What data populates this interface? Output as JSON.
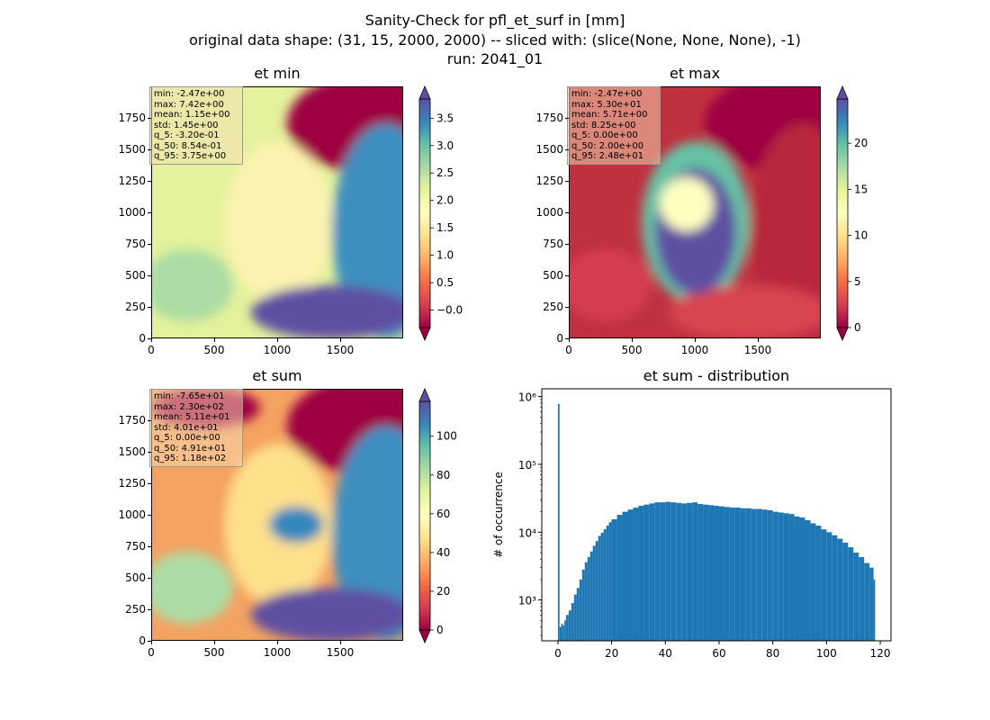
{
  "figure": {
    "title_lines": [
      "Sanity-Check for pfl_et_surf in [mm]",
      "original data shape: (31, 15, 2000, 2000) -- sliced with: (slice(None, None, None), -1)",
      "run: 2041_01"
    ]
  },
  "chart_data": [
    {
      "type": "heatmap",
      "title": "et min",
      "colormap": "Spectral",
      "x_ticks": [
        "0",
        "500",
        "1000",
        "1500"
      ],
      "y_ticks": [
        "0",
        "250",
        "500",
        "750",
        "1000",
        "1250",
        "1500",
        "1750"
      ],
      "xlim": [
        0,
        2000
      ],
      "ylim": [
        0,
        2000
      ],
      "colorbar": {
        "ticks": [
          "−0.0",
          "0.5",
          "1.0",
          "1.5",
          "2.0",
          "2.5",
          "3.0",
          "3.5"
        ],
        "tick_values": [
          0,
          0.5,
          1.0,
          1.5,
          2.0,
          2.5,
          3.0,
          3.5
        ],
        "range": [
          -0.32,
          3.85
        ],
        "extend": "both"
      },
      "stats": [
        "min: -2.47e+00",
        "max: 7.42e+00",
        "mean: 1.15e+00",
        "std: 1.45e+00",
        "q_5: -3.20e-01",
        "q_50: 8.54e-01",
        "q_95: 3.75e+00"
      ]
    },
    {
      "type": "heatmap",
      "title": "et max",
      "colormap": "Spectral",
      "x_ticks": [
        "0",
        "500",
        "1000",
        "1500"
      ],
      "y_ticks": [
        "0",
        "250",
        "500",
        "750",
        "1000",
        "1250",
        "1500",
        "1750"
      ],
      "xlim": [
        0,
        2000
      ],
      "ylim": [
        0,
        2000
      ],
      "colorbar": {
        "ticks": [
          "0",
          "5",
          "10",
          "15",
          "20"
        ],
        "tick_values": [
          0,
          5,
          10,
          15,
          20
        ],
        "range": [
          0,
          24.8
        ],
        "extend": "both"
      },
      "stats": [
        "min: -2.47e+00",
        "max: 5.30e+01",
        "mean: 5.71e+00",
        "std: 8.25e+00",
        "q_5: 0.00e+00",
        "q_50: 2.00e+00",
        "q_95: 2.48e+01"
      ]
    },
    {
      "type": "heatmap",
      "title": "et sum",
      "colormap": "Spectral",
      "x_ticks": [
        "0",
        "500",
        "1000",
        "1500"
      ],
      "y_ticks": [
        "0",
        "250",
        "500",
        "750",
        "1000",
        "1250",
        "1500",
        "1750"
      ],
      "xlim": [
        0,
        2000
      ],
      "ylim": [
        0,
        2000
      ],
      "colorbar": {
        "ticks": [
          "0",
          "20",
          "40",
          "60",
          "80",
          "100"
        ],
        "tick_values": [
          0,
          20,
          40,
          60,
          80,
          100
        ],
        "range": [
          0,
          118
        ],
        "extend": "both"
      },
      "stats": [
        "min: -7.65e+01",
        "max: 2.30e+02",
        "mean: 5.11e+01",
        "std: 4.01e+01",
        "q_5: 0.00e+00",
        "q_50: 4.91e+01",
        "q_95: 1.18e+02"
      ]
    },
    {
      "type": "bar",
      "title": "et sum - distribution",
      "ylabel": "# of occurrence",
      "yscale": "log",
      "ylim": [
        250,
        1300000
      ],
      "xlim": [
        -6,
        124
      ],
      "x_ticks": [
        "0",
        "20",
        "40",
        "60",
        "80",
        "100",
        "120"
      ],
      "x_tick_values": [
        0,
        20,
        40,
        60,
        80,
        100,
        120
      ],
      "y_ticks": [
        "10³",
        "10⁴",
        "10⁵",
        "10⁶"
      ],
      "y_tick_values": [
        1000,
        10000,
        100000,
        1000000
      ],
      "bar_color": "#1f77b4",
      "bin_width": 0.59,
      "bins_x": [
        0,
        0.6,
        1.2,
        1.8,
        2.4,
        3,
        4,
        5,
        6,
        7,
        8,
        9,
        10,
        11,
        12,
        13,
        14,
        15,
        16,
        17,
        18,
        19,
        20,
        22,
        24,
        26,
        28,
        30,
        32,
        34,
        36,
        38,
        40,
        42,
        44,
        46,
        48,
        50,
        52,
        54,
        56,
        58,
        60,
        62,
        64,
        66,
        68,
        70,
        72,
        74,
        76,
        78,
        80,
        82,
        84,
        86,
        88,
        90,
        92,
        94,
        96,
        98,
        100,
        102,
        104,
        106,
        108,
        110,
        112,
        114,
        116,
        117.5
      ],
      "counts": [
        780000,
        400,
        450,
        420,
        500,
        600,
        700,
        900,
        1200,
        1500,
        2000,
        2800,
        3600,
        4300,
        5200,
        6300,
        7400,
        8800,
        9800,
        11000,
        12500,
        14000,
        15500,
        18000,
        20000,
        21500,
        23000,
        24500,
        25500,
        26500,
        27500,
        27500,
        28000,
        27500,
        27000,
        26500,
        27000,
        27500,
        26000,
        25500,
        25000,
        24500,
        24000,
        23500,
        23000,
        23000,
        22500,
        22500,
        22000,
        22000,
        21500,
        21000,
        20000,
        19500,
        19000,
        18500,
        17000,
        16500,
        15000,
        13500,
        12500,
        11000,
        10000,
        9000,
        8000,
        7000,
        6000,
        5000,
        4300,
        3500,
        3000,
        2000
      ]
    }
  ]
}
